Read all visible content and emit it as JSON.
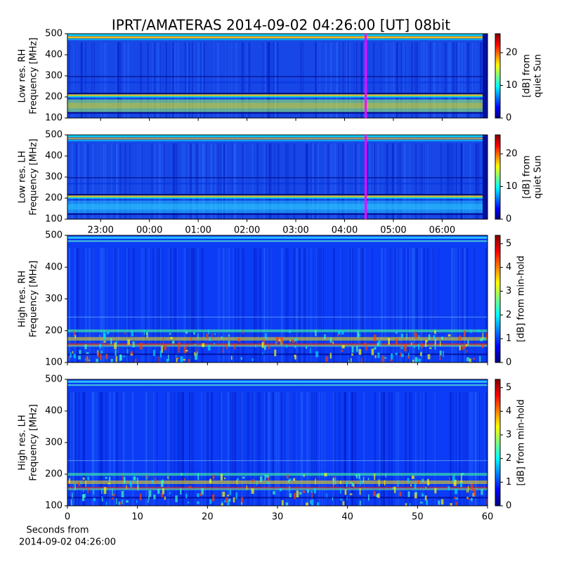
{
  "title": "IPRT/AMATERAS 2014-09-02 04:26:00 [UT]   08bit",
  "colormap": [
    "#00007f",
    "#0000ff",
    "#007fff",
    "#00ffff",
    "#7fff7f",
    "#ffff00",
    "#ff7f00",
    "#ff0000",
    "#7f0000"
  ],
  "marker_color": "#ff00ff",
  "chart_data": [
    {
      "type": "spectrogram",
      "ylabel": [
        "Low res. RH",
        "Frequency [MHz]"
      ],
      "ylim": [
        100,
        500
      ],
      "yticks": [
        100,
        200,
        300,
        400,
        500
      ],
      "xlim": [
        22.32,
        30.93
      ],
      "xticks": [
        23,
        24,
        25,
        26,
        27,
        28,
        29,
        30
      ],
      "marker": 28.433,
      "colorbar_label": [
        "[dB] from",
        "quiet Sun"
      ],
      "clim": [
        0,
        25.8
      ],
      "cticks": [
        0,
        10,
        20
      ]
    },
    {
      "type": "spectrogram",
      "ylabel": [
        "Low res. LH",
        "Frequency [MHz]"
      ],
      "ylim": [
        100,
        500
      ],
      "yticks": [
        100,
        200,
        300,
        400,
        500
      ],
      "xlim": [
        22.32,
        30.93
      ],
      "xticks": [
        {
          "value": 23,
          "label": "23:00"
        },
        {
          "value": 24,
          "label": "00:00"
        },
        {
          "value": 25,
          "label": "01:00"
        },
        {
          "value": 26,
          "label": "02:00"
        },
        {
          "value": 27,
          "label": "03:00"
        },
        {
          "value": 28,
          "label": "04:00"
        },
        {
          "value": 29,
          "label": "05:00"
        },
        {
          "value": 30,
          "label": "06:00"
        }
      ],
      "marker": 28.433,
      "colorbar_label": [
        "[dB] from",
        "quiet Sun"
      ],
      "clim": [
        0,
        25.8
      ],
      "cticks": [
        0,
        10,
        20
      ]
    },
    {
      "type": "spectrogram",
      "ylabel": [
        "High res. RH",
        "Frequency [MHz]"
      ],
      "ylim": [
        100,
        500
      ],
      "yticks": [
        100,
        200,
        300,
        400,
        500
      ],
      "xlim": [
        0,
        60
      ],
      "xticks": [
        0,
        10,
        20,
        30,
        40,
        50,
        60
      ],
      "colorbar_label": [
        "[dB] from min-hold"
      ],
      "clim": [
        0,
        5.35
      ],
      "cticks": [
        0,
        1,
        2,
        3,
        4,
        5
      ]
    },
    {
      "type": "spectrogram",
      "ylabel": [
        "High res. LH",
        "Frequency [MHz]"
      ],
      "ylim": [
        100,
        500
      ],
      "yticks": [
        100,
        200,
        300,
        400,
        500
      ],
      "xlim": [
        0,
        60
      ],
      "xticks": [
        0,
        10,
        20,
        30,
        40,
        50,
        60
      ],
      "xlabel": [
        "Seconds from",
        "2014-09-02 04:26:00"
      ],
      "colorbar_label": [
        "[dB] from min-hold"
      ],
      "clim": [
        0,
        5.35
      ],
      "cticks": [
        0,
        1,
        2,
        3,
        4,
        5
      ]
    }
  ]
}
